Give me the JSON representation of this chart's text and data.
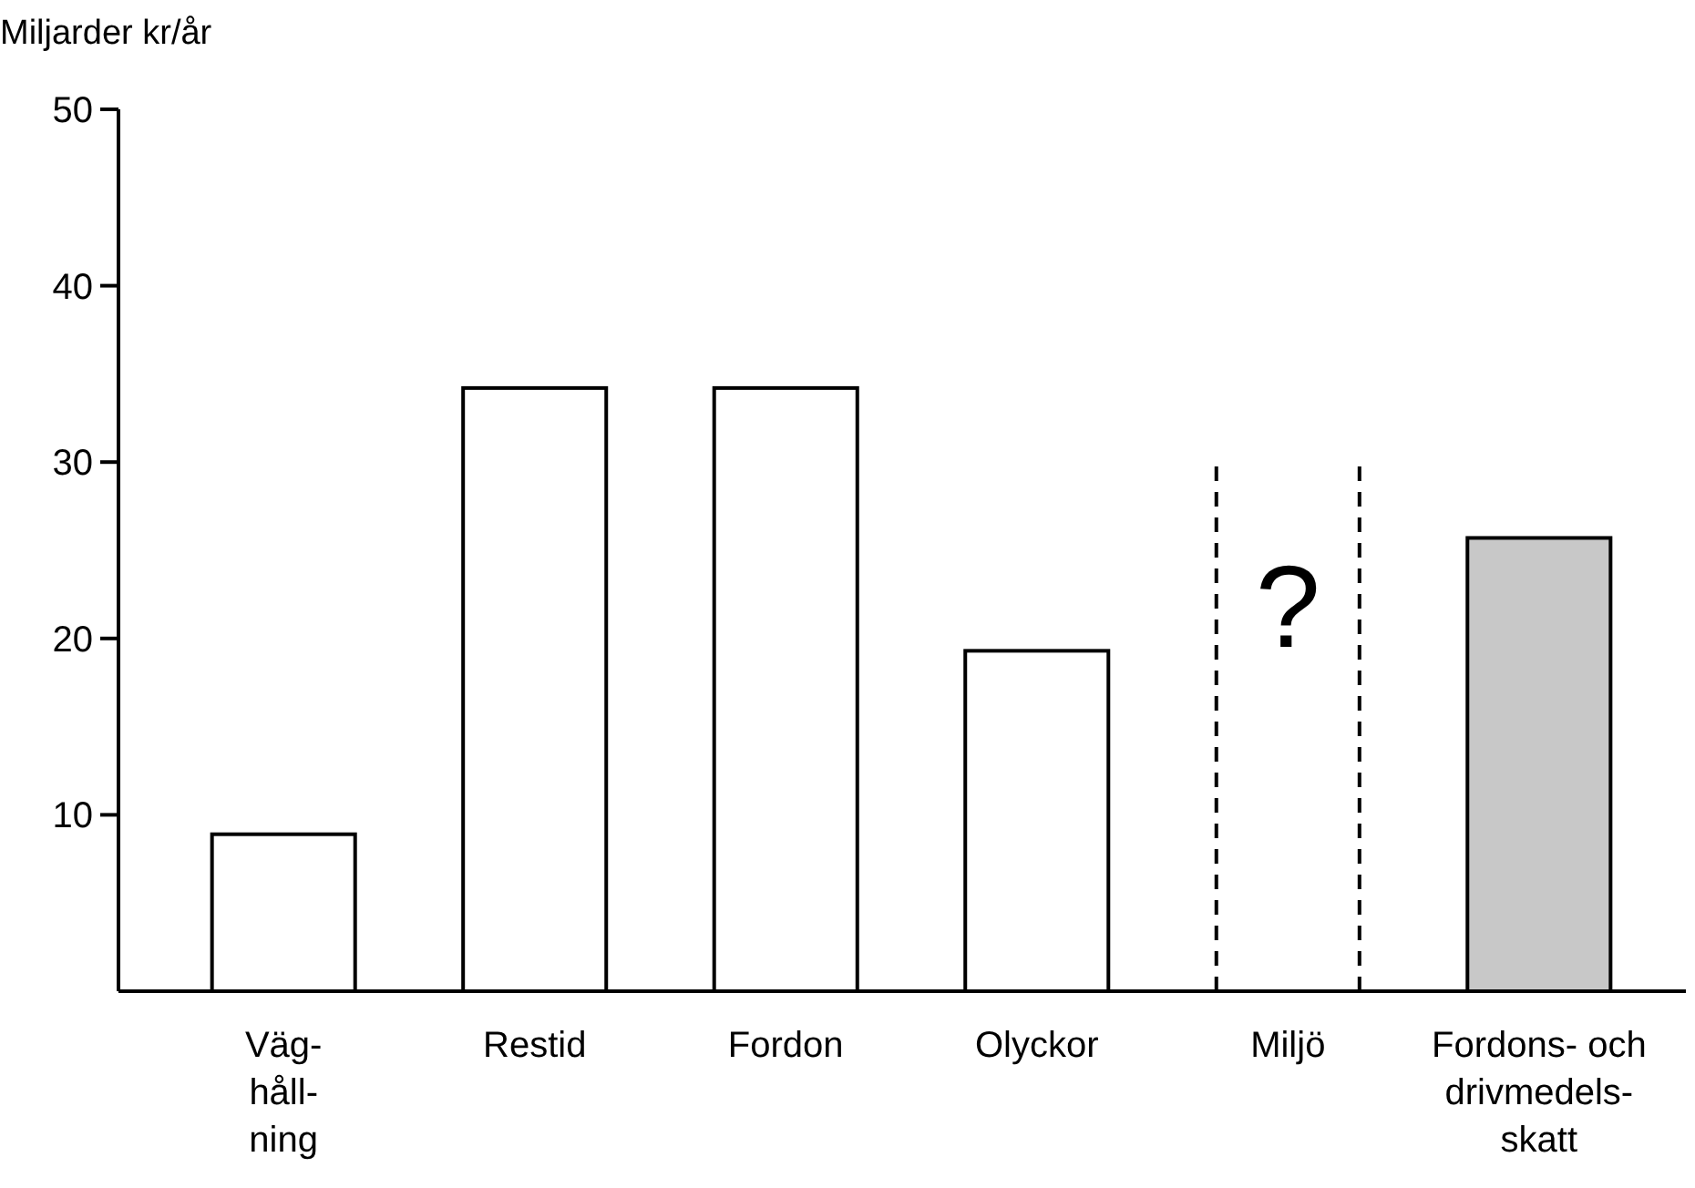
{
  "chart_data": {
    "type": "bar",
    "ylabel": "Miljarder kr/år",
    "categories": [
      "Väg-\nhåll-\nning",
      "Restid",
      "Fordon",
      "Olyckor",
      "Miljö",
      "Fordons- och\ndrivmedels-\nskatt"
    ],
    "values": [
      8.9,
      34.2,
      34.2,
      19.3,
      null,
      25.7
    ],
    "colors": [
      "#ffffff",
      "#ffffff",
      "#ffffff",
      "#ffffff",
      null,
      "#c8c8c8"
    ],
    "ylim": [
      0,
      50
    ],
    "yticks": [
      10,
      20,
      30,
      40,
      50
    ],
    "grid": false,
    "annotations": [
      "?"
    ]
  }
}
